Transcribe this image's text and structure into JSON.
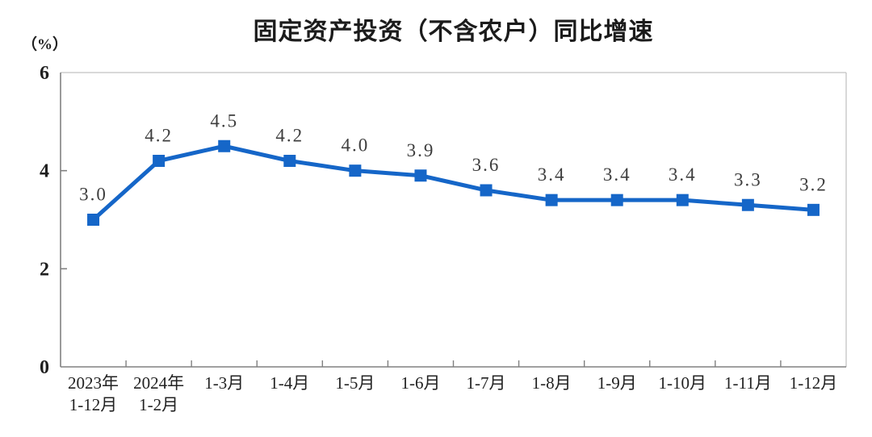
{
  "chart_data": {
    "type": "line",
    "title": "固定资产投资（不含农户）同比增速",
    "unit_label": "（%）",
    "series_name": "固定资产投资（不含农户）同比增速",
    "categories": [
      [
        "2023年",
        "1-12月"
      ],
      [
        "2024年",
        "1-2月"
      ],
      [
        "1-3月"
      ],
      [
        "1-4月"
      ],
      [
        "1-5月"
      ],
      [
        "1-6月"
      ],
      [
        "1-7月"
      ],
      [
        "1-8月"
      ],
      [
        "1-9月"
      ],
      [
        "1-10月"
      ],
      [
        "1-11月"
      ],
      [
        "1-12月"
      ]
    ],
    "values": [
      3.0,
      4.2,
      4.5,
      4.2,
      4.0,
      3.9,
      3.6,
      3.4,
      3.4,
      3.4,
      3.3,
      3.2
    ],
    "point_labels": [
      "3.0",
      "4.2",
      "4.5",
      "4.2",
      "4.0",
      "3.9",
      "3.6",
      "3.4",
      "3.4",
      "3.4",
      "3.3",
      "3.2"
    ],
    "y_ticks": [
      0,
      2,
      4,
      6
    ],
    "ylim": [
      0,
      6
    ],
    "grid": false,
    "legend_position": "none",
    "marker": "square",
    "colors": {
      "line": "#1566C8",
      "marker": "#1566C8",
      "axis": "#808080",
      "frame_light": "#c2c2c2",
      "title_text": "#1b1b1b",
      "label_text": "#3d3d3d",
      "background": "#ffffff"
    }
  }
}
